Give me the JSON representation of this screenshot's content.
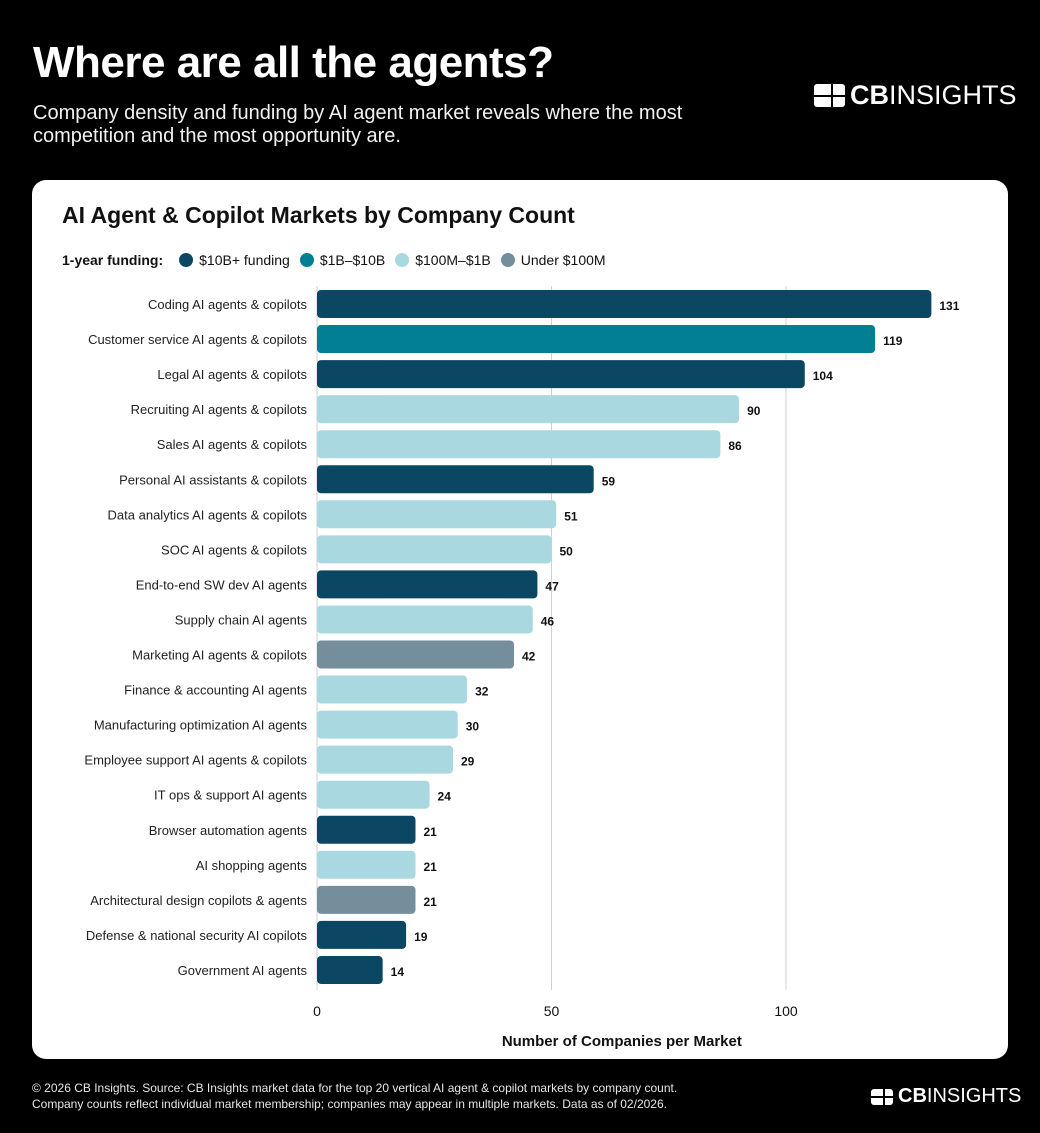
{
  "header": {
    "title": "Where are all the agents?",
    "subtitle": "Company density and funding by AI agent market reveals where the most competition and the most opportunity are.",
    "logo_text": "CBINSIGHTS"
  },
  "legend": {
    "title": "1-year funding:",
    "items": [
      {
        "label": "$10B+ funding",
        "color": "#0b4662"
      },
      {
        "label": "$1B–$10B",
        "color": "#027f93"
      },
      {
        "label": "$100M–$1B",
        "color": "#a9d8e0"
      },
      {
        "label": "Under $100M",
        "color": "#748e9b"
      }
    ]
  },
  "chart_data": {
    "type": "bar",
    "orientation": "horizontal",
    "title": "AI Agent & Copilot Markets by Company Count",
    "xlabel": "Number of Companies per Market",
    "ylabel": "",
    "xlim": [
      0,
      135
    ],
    "xticks": [
      0,
      50,
      100
    ],
    "grid": "vertical",
    "legend_placement": "top-left",
    "categories": [
      "Coding AI agents & copilots",
      "Customer service AI agents & copilots",
      "Legal AI agents & copilots",
      "Recruiting AI agents & copilots",
      "Sales AI agents & copilots",
      "Personal AI assistants & copilots",
      "Data analytics AI agents & copilots",
      "SOC AI agents & copilots",
      "End-to-end SW dev AI agents",
      "Supply chain AI agents",
      "Marketing AI agents & copilots",
      "Finance & accounting AI agents",
      "Manufacturing optimization AI agents",
      "Employee support AI agents & copilots",
      "IT ops & support AI agents",
      "Browser automation agents",
      "AI shopping agents",
      "Architectural design copilots & agents",
      "Defense & national security AI copilots",
      "Government AI agents"
    ],
    "values": [
      131,
      119,
      104,
      90,
      86,
      59,
      51,
      50,
      47,
      46,
      42,
      32,
      30,
      29,
      24,
      21,
      21,
      21,
      19,
      14
    ],
    "funding_tier": [
      0,
      1,
      0,
      2,
      2,
      0,
      2,
      2,
      0,
      2,
      3,
      2,
      2,
      2,
      2,
      0,
      2,
      3,
      0,
      0
    ]
  },
  "footer": {
    "line1": "© 2026 CB Insights. Source: CB Insights market data for the top 20 vertical AI agent & copilot markets by company count.",
    "line2": "Company counts reflect individual market membership; companies may appear in multiple markets. Data as of 02/2026."
  }
}
